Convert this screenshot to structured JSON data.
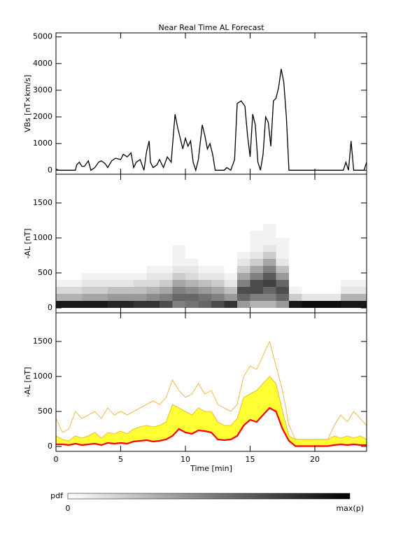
{
  "chart_data": [
    {
      "type": "line",
      "title": "Near Real Time AL Forecast",
      "ylabel": "VBs [nT×km/s]",
      "color": "#000000",
      "x": [
        0,
        0.2,
        1.5,
        1.6,
        1.8,
        2.0,
        2.2,
        2.5,
        2.7,
        3,
        3.3,
        3.5,
        3.8,
        4,
        4.3,
        4.6,
        5,
        5.2,
        5.5,
        5.8,
        6.0,
        6.2,
        6.5,
        6.8,
        7.0,
        7.2,
        7.3,
        7.5,
        7.8,
        8.0,
        8.3,
        8.6,
        8.9,
        9.0,
        9.2,
        9.4,
        9.6,
        9.8,
        10,
        10.2,
        10.4,
        10.6,
        10.8,
        11,
        11.3,
        11.5,
        11.7,
        11.9,
        12.1,
        12.3,
        13,
        13.2,
        13.5,
        13.8,
        14,
        14.3,
        14.6,
        14.8,
        15,
        15.2,
        15.4,
        15.6,
        15.8,
        16,
        16.2,
        16.4,
        16.6,
        16.8,
        17,
        17.2,
        17.4,
        17.6,
        17.8,
        18,
        22.2,
        22.4,
        22.6,
        22.8,
        23,
        23.8,
        24
      ],
      "values": [
        50,
        0,
        0,
        200,
        300,
        150,
        150,
        350,
        0,
        100,
        300,
        350,
        250,
        100,
        350,
        450,
        400,
        600,
        500,
        650,
        100,
        300,
        400,
        0,
        700,
        1100,
        300,
        100,
        200,
        400,
        100,
        500,
        300,
        900,
        2100,
        1600,
        1200,
        800,
        1200,
        900,
        1100,
        300,
        0,
        400,
        1700,
        1300,
        800,
        1000,
        600,
        0,
        0,
        100,
        0,
        400,
        2500,
        2600,
        2400,
        1300,
        500,
        2100,
        1700,
        300,
        0,
        600,
        2000,
        1800,
        900,
        2600,
        2700,
        3100,
        3800,
        3300,
        2000,
        0,
        0,
        300,
        0,
        1100,
        0,
        0,
        300
      ],
      "xlim": [
        0,
        24
      ],
      "ylim": [
        -150,
        5150
      ],
      "yticks": [
        0,
        1000,
        2000,
        3000,
        4000,
        5000
      ]
    },
    {
      "type": "heatmap",
      "ylabel": "-AL [nT]",
      "xbins": [
        0,
        1,
        2,
        3,
        4,
        5,
        6,
        7,
        8,
        9,
        10,
        11,
        12,
        13,
        14,
        15,
        16,
        17,
        18,
        19,
        20,
        21,
        22,
        23,
        24
      ],
      "ybins": [
        0,
        100,
        200,
        300,
        400,
        500,
        600,
        700,
        800,
        900,
        1000,
        1100,
        1200
      ],
      "pdf": [
        [
          0.9,
          0.3,
          0.15,
          0.05,
          0,
          0,
          0,
          0,
          0,
          0,
          0,
          0
        ],
        [
          0.9,
          0.3,
          0.15,
          0.05,
          0,
          0,
          0,
          0,
          0,
          0,
          0,
          0
        ],
        [
          0.9,
          0.35,
          0.2,
          0.1,
          0.05,
          0,
          0,
          0,
          0,
          0,
          0,
          0
        ],
        [
          0.9,
          0.35,
          0.2,
          0.1,
          0.05,
          0,
          0,
          0,
          0,
          0,
          0,
          0
        ],
        [
          0.85,
          0.4,
          0.25,
          0.1,
          0.05,
          0,
          0,
          0,
          0,
          0,
          0,
          0
        ],
        [
          0.85,
          0.4,
          0.25,
          0.1,
          0.05,
          0,
          0,
          0,
          0,
          0,
          0,
          0
        ],
        [
          0.8,
          0.4,
          0.25,
          0.15,
          0.05,
          0,
          0,
          0,
          0,
          0,
          0,
          0
        ],
        [
          0.8,
          0.45,
          0.3,
          0.15,
          0.1,
          0.05,
          0,
          0,
          0,
          0,
          0,
          0
        ],
        [
          0.7,
          0.5,
          0.35,
          0.2,
          0.1,
          0.05,
          0,
          0,
          0,
          0,
          0,
          0
        ],
        [
          0.5,
          0.6,
          0.5,
          0.35,
          0.2,
          0.1,
          0.05,
          0.05,
          0.05,
          0,
          0,
          0
        ],
        [
          0.55,
          0.6,
          0.45,
          0.3,
          0.15,
          0.1,
          0.05,
          0,
          0,
          0,
          0,
          0
        ],
        [
          0.6,
          0.55,
          0.4,
          0.25,
          0.1,
          0.05,
          0,
          0,
          0,
          0,
          0,
          0
        ],
        [
          0.7,
          0.5,
          0.35,
          0.2,
          0.1,
          0.05,
          0,
          0,
          0,
          0,
          0,
          0
        ],
        [
          0.8,
          0.4,
          0.25,
          0.1,
          0.05,
          0,
          0,
          0,
          0,
          0,
          0,
          0
        ],
        [
          0.4,
          0.6,
          0.7,
          0.5,
          0.35,
          0.2,
          0.1,
          0.05,
          0,
          0,
          0,
          0
        ],
        [
          0.3,
          0.5,
          0.7,
          0.7,
          0.5,
          0.35,
          0.2,
          0.1,
          0.05,
          0.05,
          0.05,
          0
        ],
        [
          0.3,
          0.5,
          0.6,
          0.75,
          0.65,
          0.5,
          0.35,
          0.2,
          0.1,
          0.05,
          0.05,
          0.05
        ],
        [
          0.4,
          0.6,
          0.7,
          0.6,
          0.4,
          0.25,
          0.1,
          0.05,
          0.05,
          0.05,
          0,
          0
        ],
        [
          0.9,
          0.2,
          0.05,
          0,
          0,
          0,
          0,
          0,
          0,
          0,
          0,
          0
        ],
        [
          0.95,
          0.1,
          0,
          0,
          0,
          0,
          0,
          0,
          0,
          0,
          0,
          0
        ],
        [
          0.95,
          0.1,
          0,
          0,
          0,
          0,
          0,
          0,
          0,
          0,
          0,
          0
        ],
        [
          0.95,
          0.1,
          0,
          0,
          0,
          0,
          0,
          0,
          0,
          0,
          0,
          0
        ],
        [
          0.9,
          0.3,
          0.1,
          0.05,
          0,
          0,
          0,
          0,
          0,
          0,
          0,
          0
        ],
        [
          0.9,
          0.3,
          0.1,
          0.05,
          0,
          0,
          0,
          0,
          0,
          0,
          0,
          0
        ]
      ],
      "xlim": [
        0,
        24
      ],
      "ylim": [
        -70,
        1910
      ],
      "yticks": [
        0,
        500,
        1000,
        1500
      ],
      "colorbar": {
        "label": "pdf",
        "min_label": "0",
        "max_label": "max(p)"
      }
    },
    {
      "type": "band",
      "xlabel": "Time [min]",
      "ylabel": "-AL [nT]",
      "x": [
        0,
        0.5,
        1,
        1.5,
        2,
        2.5,
        3,
        3.5,
        4,
        4.5,
        5,
        5.5,
        6,
        6.5,
        7,
        7.5,
        8,
        8.5,
        9,
        9.5,
        10,
        10.5,
        11,
        11.5,
        12,
        12.5,
        13,
        13.5,
        14,
        14.5,
        15,
        15.5,
        16,
        16.5,
        17,
        17.5,
        18,
        18.5,
        19,
        19.5,
        20,
        20.5,
        21,
        21.5,
        22,
        22.5,
        23,
        23.5,
        24
      ],
      "median_values": [
        30,
        30,
        20,
        40,
        20,
        30,
        40,
        20,
        50,
        40,
        50,
        40,
        70,
        80,
        90,
        70,
        80,
        100,
        150,
        250,
        200,
        180,
        230,
        220,
        200,
        100,
        90,
        100,
        150,
        300,
        380,
        350,
        450,
        550,
        500,
        250,
        80,
        5,
        5,
        5,
        5,
        5,
        5,
        20,
        30,
        20,
        30,
        20,
        20
      ],
      "upper_values": [
        150,
        100,
        80,
        150,
        120,
        150,
        200,
        120,
        200,
        180,
        220,
        180,
        250,
        280,
        300,
        280,
        300,
        350,
        600,
        550,
        500,
        450,
        550,
        500,
        500,
        350,
        300,
        300,
        400,
        700,
        750,
        800,
        900,
        1000,
        900,
        500,
        150,
        100,
        100,
        100,
        100,
        100,
        100,
        150,
        120,
        150,
        120,
        150,
        100
      ],
      "max_values": [
        400,
        200,
        250,
        500,
        400,
        450,
        500,
        400,
        550,
        450,
        500,
        450,
        500,
        550,
        600,
        650,
        600,
        700,
        950,
        800,
        700,
        750,
        900,
        750,
        800,
        600,
        550,
        500,
        600,
        1000,
        1150,
        1100,
        1300,
        1500,
        1150,
        800,
        300,
        100,
        100,
        100,
        100,
        100,
        100,
        300,
        450,
        350,
        500,
        400,
        300
      ],
      "median_color": "#ff0000",
      "band_color": "#ffff33",
      "max_color": "#f5a623",
      "xlim": [
        0,
        24
      ],
      "xticks": [
        0,
        5,
        10,
        15,
        20
      ],
      "ylim": [
        -70,
        1910
      ],
      "yticks": [
        0,
        500,
        1000,
        1500
      ]
    }
  ]
}
